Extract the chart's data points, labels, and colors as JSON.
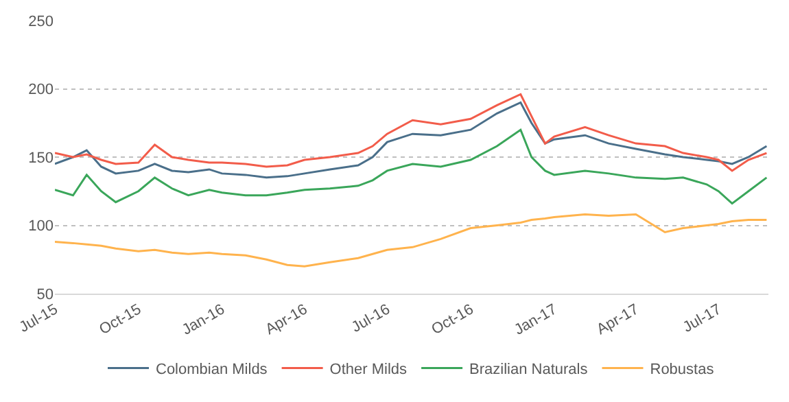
{
  "chart_data": {
    "type": "line",
    "x": [
      "2015-07-01",
      "2015-07-21",
      "2015-08-05",
      "2015-08-21",
      "2015-09-06",
      "2015-10-01",
      "2015-10-19",
      "2015-11-07",
      "2015-11-25",
      "2015-12-18",
      "2016-01-01",
      "2016-01-27",
      "2016-02-19",
      "2016-03-13",
      "2016-04-01",
      "2016-04-29",
      "2016-05-30",
      "2016-06-15",
      "2016-07-01",
      "2016-07-29",
      "2016-08-29",
      "2016-10-01",
      "2016-10-30",
      "2016-11-25",
      "2016-12-07",
      "2016-12-22",
      "2017-01-01",
      "2017-02-04",
      "2017-03-02",
      "2017-04-01",
      "2017-05-03",
      "2017-05-23",
      "2017-06-18",
      "2017-07-01",
      "2017-07-16",
      "2017-08-03",
      "2017-08-23"
    ],
    "series": [
      {
        "name": "Colombian Milds",
        "color": "#4a6f8a",
        "values": [
          145,
          150,
          155,
          143,
          138,
          140,
          145,
          140,
          139,
          141,
          138,
          137,
          135,
          136,
          138,
          141,
          144,
          150,
          161,
          167,
          166,
          170,
          182,
          190,
          175,
          160,
          163,
          166,
          160,
          156,
          152,
          150,
          148,
          147,
          145,
          150,
          158
        ]
      },
      {
        "name": "Other Milds",
        "color": "#f25c4a",
        "values": [
          153,
          150,
          152,
          148,
          145,
          146,
          159,
          150,
          148,
          146,
          146,
          145,
          143,
          144,
          148,
          150,
          153,
          158,
          167,
          177,
          174,
          178,
          188,
          196,
          180,
          160,
          165,
          172,
          166,
          160,
          158,
          153,
          150,
          148,
          140,
          148,
          153
        ]
      },
      {
        "name": "Brazilian Naturals",
        "color": "#3aa65a",
        "values": [
          126,
          122,
          137,
          125,
          117,
          125,
          135,
          127,
          122,
          126,
          124,
          122,
          122,
          124,
          126,
          127,
          129,
          133,
          140,
          145,
          143,
          148,
          158,
          170,
          150,
          140,
          137,
          140,
          138,
          135,
          134,
          135,
          130,
          125,
          116,
          125,
          135
        ]
      },
      {
        "name": "Robustas",
        "color": "#ffb34d",
        "values": [
          88,
          87,
          86,
          85,
          83,
          81,
          82,
          80,
          79,
          80,
          79,
          78,
          75,
          71,
          70,
          73,
          76,
          79,
          82,
          84,
          90,
          98,
          100,
          102,
          104,
          105,
          106,
          108,
          107,
          108,
          95,
          98,
          100,
          101,
          103,
          104,
          104
        ]
      }
    ],
    "xlim": [
      "2015-07-01",
      "2017-08-25"
    ],
    "xticks": [
      {
        "value": "2015-07-01",
        "label": "Jul-15"
      },
      {
        "value": "2015-10-01",
        "label": "Oct-15"
      },
      {
        "value": "2016-01-01",
        "label": "Jan-16"
      },
      {
        "value": "2016-04-01",
        "label": "Apr-16"
      },
      {
        "value": "2016-07-01",
        "label": "Jul-16"
      },
      {
        "value": "2016-10-01",
        "label": "Oct-16"
      },
      {
        "value": "2017-01-01",
        "label": "Jan-17"
      },
      {
        "value": "2017-04-01",
        "label": "Apr-17"
      },
      {
        "value": "2017-07-01",
        "label": "Jul-17"
      }
    ],
    "ylim": [
      50,
      250
    ],
    "yticks": [
      50,
      100,
      150,
      200,
      250
    ],
    "grid": "y",
    "legend": "bottom",
    "marker": "none",
    "line_style": "solid"
  }
}
